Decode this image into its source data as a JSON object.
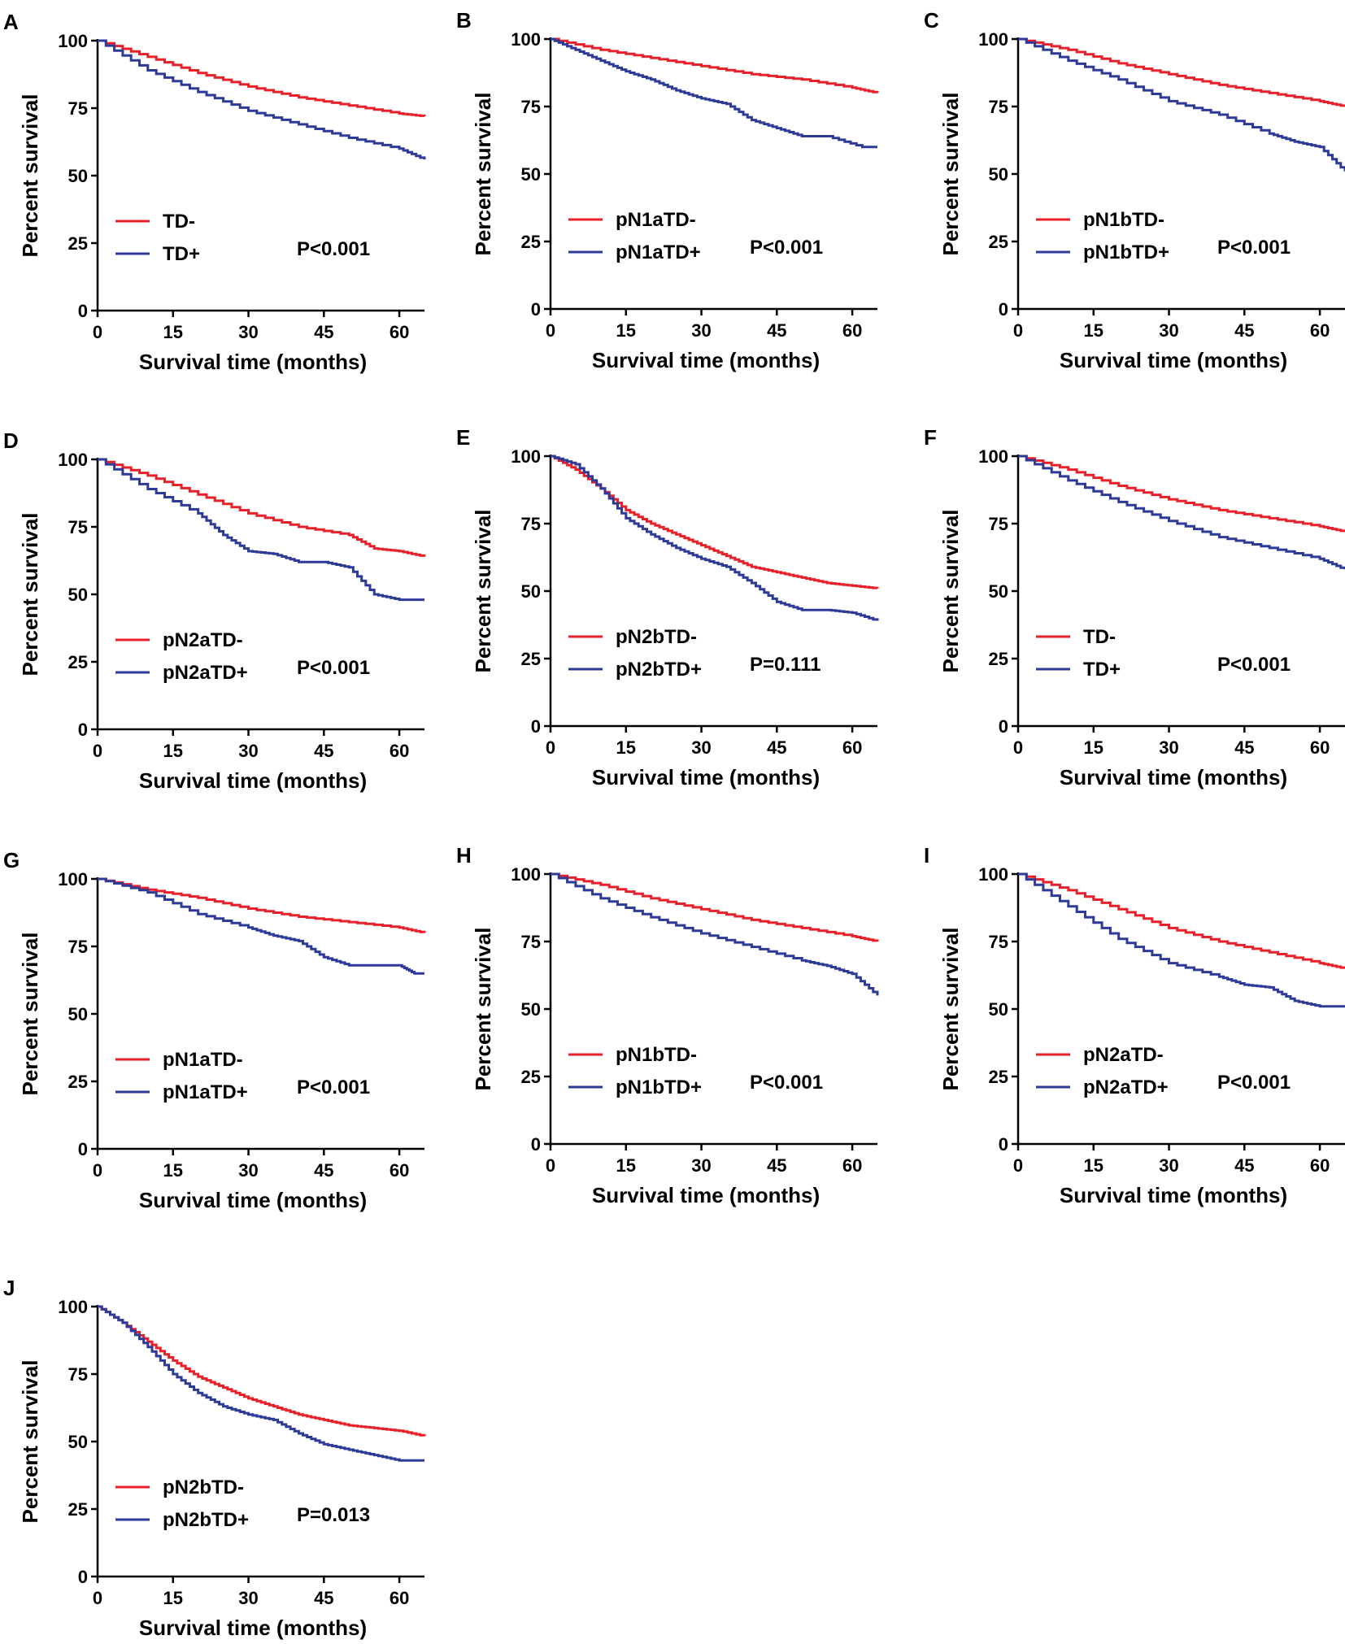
{
  "colors": {
    "td_neg": "#e8202a",
    "td_pos": "#2e3a97"
  },
  "chart_data": [
    {
      "type": "line",
      "panel": "A",
      "xlabel": "Survival time (months)",
      "ylabel": "Percent survival",
      "xlim": [
        0,
        65
      ],
      "ylim": [
        0,
        100
      ],
      "xticks": [
        0,
        15,
        30,
        45,
        60
      ],
      "yticks": [
        0,
        25,
        50,
        75,
        100
      ],
      "legend": {
        "neg": "TD-",
        "pos": "TD+"
      },
      "pvalue": "P<0.001",
      "series": [
        {
          "name": "TD-",
          "x": [
            0,
            10,
            20,
            30,
            40,
            50,
            60,
            65
          ],
          "y": [
            100,
            94,
            88,
            83,
            79,
            76,
            73,
            72
          ]
        },
        {
          "name": "TD+",
          "x": [
            0,
            10,
            20,
            30,
            40,
            50,
            60,
            65
          ],
          "y": [
            100,
            89,
            81,
            74,
            69,
            64,
            60,
            56
          ]
        }
      ]
    },
    {
      "type": "line",
      "panel": "B",
      "xlabel": "Survival time (months)",
      "ylabel": "Percent survival",
      "xlim": [
        0,
        65
      ],
      "ylim": [
        0,
        100
      ],
      "xticks": [
        0,
        15,
        30,
        45,
        60
      ],
      "yticks": [
        0,
        25,
        50,
        75,
        100
      ],
      "legend": {
        "neg": "pN1aTD-",
        "pos": "pN1aTD+"
      },
      "pvalue": "P<0.001",
      "series": [
        {
          "name": "pN1aTD-",
          "x": [
            0,
            10,
            20,
            30,
            40,
            50,
            60,
            65
          ],
          "y": [
            100,
            96,
            93,
            90,
            87,
            85,
            82,
            80
          ]
        },
        {
          "name": "pN1aTD+",
          "x": [
            0,
            5,
            10,
            15,
            20,
            25,
            30,
            35,
            40,
            45,
            50,
            55,
            62,
            65
          ],
          "y": [
            100,
            96,
            92,
            88,
            85,
            81,
            78,
            76,
            70,
            67,
            64,
            64,
            60,
            60
          ]
        }
      ]
    },
    {
      "type": "line",
      "panel": "C",
      "xlabel": "Survival time (months)",
      "ylabel": "Percent survival",
      "xlim": [
        0,
        65
      ],
      "ylim": [
        0,
        100
      ],
      "xticks": [
        0,
        15,
        30,
        45,
        60
      ],
      "yticks": [
        0,
        25,
        50,
        75,
        100
      ],
      "legend": {
        "neg": "pN1bTD-",
        "pos": "pN1bTD+"
      },
      "pvalue": "P<0.001",
      "series": [
        {
          "name": "pN1bTD-",
          "x": [
            0,
            10,
            20,
            30,
            40,
            50,
            60,
            65
          ],
          "y": [
            100,
            96,
            91,
            87,
            83,
            80,
            77,
            75
          ]
        },
        {
          "name": "pN1bTD+",
          "x": [
            0,
            10,
            20,
            30,
            40,
            50,
            55,
            60,
            65
          ],
          "y": [
            100,
            92,
            85,
            77,
            72,
            65,
            62,
            60,
            51
          ]
        }
      ]
    },
    {
      "type": "line",
      "panel": "D",
      "xlabel": "Survival time (months)",
      "ylabel": "Percent survival",
      "xlim": [
        0,
        65
      ],
      "ylim": [
        0,
        100
      ],
      "xticks": [
        0,
        15,
        30,
        45,
        60
      ],
      "yticks": [
        0,
        25,
        50,
        75,
        100
      ],
      "legend": {
        "neg": "pN2aTD-",
        "pos": "pN2aTD+"
      },
      "pvalue": "P<0.001",
      "series": [
        {
          "name": "pN2aTD-",
          "x": [
            0,
            10,
            20,
            30,
            40,
            50,
            55,
            60,
            65
          ],
          "y": [
            100,
            94,
            87,
            80,
            75,
            72,
            67,
            66,
            64
          ]
        },
        {
          "name": "pN2aTD+",
          "x": [
            0,
            10,
            20,
            25,
            30,
            35,
            40,
            45,
            50,
            55,
            60,
            65
          ],
          "y": [
            100,
            89,
            80,
            72,
            66,
            65,
            62,
            62,
            60,
            50,
            48,
            48
          ]
        }
      ]
    },
    {
      "type": "line",
      "panel": "E",
      "xlabel": "Survival time (months)",
      "ylabel": "Percent survival",
      "xlim": [
        0,
        65
      ],
      "ylim": [
        0,
        100
      ],
      "xticks": [
        0,
        15,
        30,
        45,
        60
      ],
      "yticks": [
        0,
        25,
        50,
        75,
        100
      ],
      "legend": {
        "neg": "pN2bTD-",
        "pos": "pN2bTD+"
      },
      "pvalue": "P=0.111",
      "series": [
        {
          "name": "pN2bTD-",
          "x": [
            0,
            5,
            10,
            15,
            20,
            25,
            30,
            35,
            40,
            45,
            50,
            55,
            60,
            65
          ],
          "y": [
            100,
            95,
            88,
            80,
            75,
            71,
            67,
            63,
            59,
            57,
            55,
            53,
            52,
            51
          ]
        },
        {
          "name": "pN2bTD+",
          "x": [
            0,
            5,
            10,
            15,
            20,
            25,
            30,
            35,
            40,
            45,
            50,
            55,
            60,
            65
          ],
          "y": [
            100,
            97,
            88,
            77,
            71,
            66,
            62,
            59,
            53,
            46,
            43,
            43,
            42,
            39
          ]
        }
      ]
    },
    {
      "type": "line",
      "panel": "F",
      "xlabel": "Survival time (months)",
      "ylabel": "Percent survival",
      "xlim": [
        0,
        65
      ],
      "ylim": [
        0,
        100
      ],
      "xticks": [
        0,
        15,
        30,
        45,
        60
      ],
      "yticks": [
        0,
        25,
        50,
        75,
        100
      ],
      "legend": {
        "neg": "TD-",
        "pos": "TD+"
      },
      "pvalue": "P<0.001",
      "series": [
        {
          "name": "TD-",
          "x": [
            0,
            10,
            20,
            30,
            40,
            50,
            60,
            65
          ],
          "y": [
            100,
            95,
            89,
            84,
            80,
            77,
            74,
            72
          ]
        },
        {
          "name": "TD+",
          "x": [
            0,
            10,
            20,
            30,
            40,
            50,
            60,
            65
          ],
          "y": [
            100,
            91,
            83,
            76,
            70,
            66,
            62,
            58
          ]
        }
      ]
    },
    {
      "type": "line",
      "panel": "G",
      "xlabel": "Survival time (months)",
      "ylabel": "Percent survival",
      "xlim": [
        0,
        65
      ],
      "ylim": [
        0,
        100
      ],
      "xticks": [
        0,
        15,
        30,
        45,
        60
      ],
      "yticks": [
        0,
        25,
        50,
        75,
        100
      ],
      "legend": {
        "neg": "pN1aTD-",
        "pos": "pN1aTD+"
      },
      "pvalue": "P<0.001",
      "series": [
        {
          "name": "pN1aTD-",
          "x": [
            0,
            10,
            20,
            30,
            40,
            50,
            60,
            65
          ],
          "y": [
            100,
            96,
            93,
            89,
            86,
            84,
            82,
            80
          ]
        },
        {
          "name": "pN1aTD+",
          "x": [
            0,
            10,
            20,
            30,
            35,
            40,
            45,
            50,
            55,
            60,
            63,
            65
          ],
          "y": [
            100,
            95,
            87,
            82,
            79,
            77,
            71,
            68,
            68,
            68,
            65,
            65
          ]
        }
      ]
    },
    {
      "type": "line",
      "panel": "H",
      "xlabel": "Survival time (months)",
      "ylabel": "Percent survival",
      "xlim": [
        0,
        65
      ],
      "ylim": [
        0,
        100
      ],
      "xticks": [
        0,
        15,
        30,
        45,
        60
      ],
      "yticks": [
        0,
        25,
        50,
        75,
        100
      ],
      "legend": {
        "neg": "pN1bTD-",
        "pos": "pN1bTD+"
      },
      "pvalue": "P<0.001",
      "series": [
        {
          "name": "pN1bTD-",
          "x": [
            0,
            10,
            20,
            30,
            40,
            50,
            60,
            65
          ],
          "y": [
            100,
            96,
            91,
            87,
            83,
            80,
            77,
            75
          ]
        },
        {
          "name": "pN1bTD+",
          "x": [
            0,
            10,
            20,
            30,
            40,
            50,
            55,
            60,
            65
          ],
          "y": [
            100,
            91,
            84,
            78,
            73,
            68,
            66,
            63,
            55
          ]
        }
      ]
    },
    {
      "type": "line",
      "panel": "I",
      "xlabel": "Survival time (months)",
      "ylabel": "Percent survival",
      "xlim": [
        0,
        65
      ],
      "ylim": [
        0,
        100
      ],
      "xticks": [
        0,
        15,
        30,
        45,
        60
      ],
      "yticks": [
        0,
        25,
        50,
        75,
        100
      ],
      "legend": {
        "neg": "pN2aTD-",
        "pos": "pN2aTD+"
      },
      "pvalue": "P<0.001",
      "series": [
        {
          "name": "pN2aTD-",
          "x": [
            0,
            10,
            20,
            30,
            40,
            50,
            60,
            65
          ],
          "y": [
            100,
            94,
            87,
            80,
            75,
            71,
            67,
            65
          ]
        },
        {
          "name": "pN2aTD+",
          "x": [
            0,
            10,
            20,
            30,
            40,
            45,
            50,
            55,
            60,
            65
          ],
          "y": [
            100,
            88,
            76,
            67,
            62,
            59,
            58,
            53,
            51,
            51
          ]
        }
      ]
    },
    {
      "type": "line",
      "panel": "J",
      "xlabel": "Survival time (months)",
      "ylabel": "Percent survival",
      "xlim": [
        0,
        65
      ],
      "ylim": [
        0,
        100
      ],
      "xticks": [
        0,
        15,
        30,
        45,
        60
      ],
      "yticks": [
        0,
        25,
        50,
        75,
        100
      ],
      "legend": {
        "neg": "pN2bTD-",
        "pos": "pN2bTD+"
      },
      "pvalue": "P=0.013",
      "series": [
        {
          "name": "pN2bTD-",
          "x": [
            0,
            5,
            10,
            15,
            20,
            25,
            30,
            35,
            40,
            45,
            50,
            55,
            60,
            65
          ],
          "y": [
            100,
            94,
            87,
            80,
            74,
            70,
            66,
            63,
            60,
            58,
            56,
            55,
            54,
            52
          ]
        },
        {
          "name": "pN2bTD+",
          "x": [
            0,
            5,
            10,
            15,
            20,
            25,
            30,
            35,
            40,
            45,
            50,
            55,
            60,
            65
          ],
          "y": [
            100,
            94,
            85,
            75,
            68,
            63,
            60,
            58,
            53,
            49,
            47,
            45,
            43,
            43
          ]
        }
      ]
    }
  ]
}
